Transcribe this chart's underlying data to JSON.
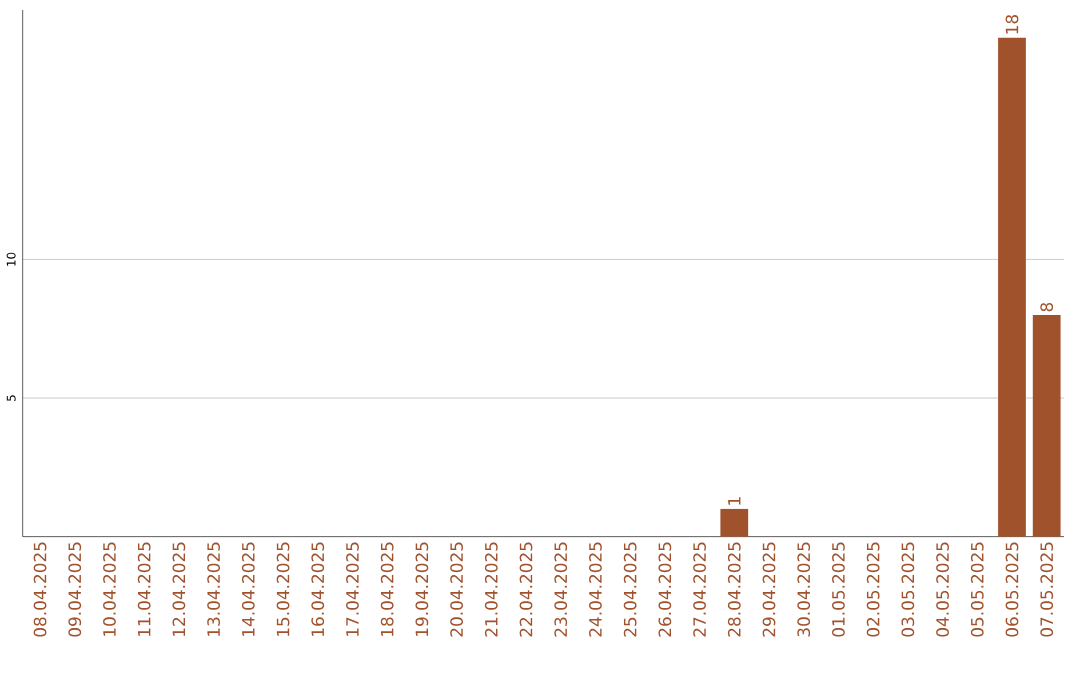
{
  "chart_data": {
    "type": "bar",
    "categories": [
      "08.04.2025",
      "09.04.2025",
      "10.04.2025",
      "11.04.2025",
      "12.04.2025",
      "13.04.2025",
      "14.04.2025",
      "15.04.2025",
      "16.04.2025",
      "17.04.2025",
      "18.04.2025",
      "19.04.2025",
      "20.04.2025",
      "21.04.2025",
      "22.04.2025",
      "23.04.2025",
      "24.04.2025",
      "25.04.2025",
      "26.04.2025",
      "27.04.2025",
      "28.04.2025",
      "29.04.2025",
      "30.04.2025",
      "01.05.2025",
      "02.05.2025",
      "03.05.2025",
      "04.05.2025",
      "05.05.2025",
      "06.05.2025",
      "07.05.2025"
    ],
    "values": [
      0,
      0,
      0,
      0,
      0,
      0,
      0,
      0,
      0,
      0,
      0,
      0,
      0,
      0,
      0,
      0,
      0,
      0,
      0,
      0,
      1,
      0,
      0,
      0,
      0,
      0,
      0,
      0,
      18,
      8
    ],
    "value_labels": [
      null,
      null,
      null,
      null,
      null,
      null,
      null,
      null,
      null,
      null,
      null,
      null,
      null,
      null,
      null,
      null,
      null,
      null,
      null,
      null,
      "1",
      null,
      null,
      null,
      null,
      null,
      null,
      null,
      "18",
      "8"
    ],
    "color": "#a0522d",
    "ylim": [
      0,
      19
    ],
    "yticks": [
      5,
      10
    ],
    "grid": "y"
  }
}
